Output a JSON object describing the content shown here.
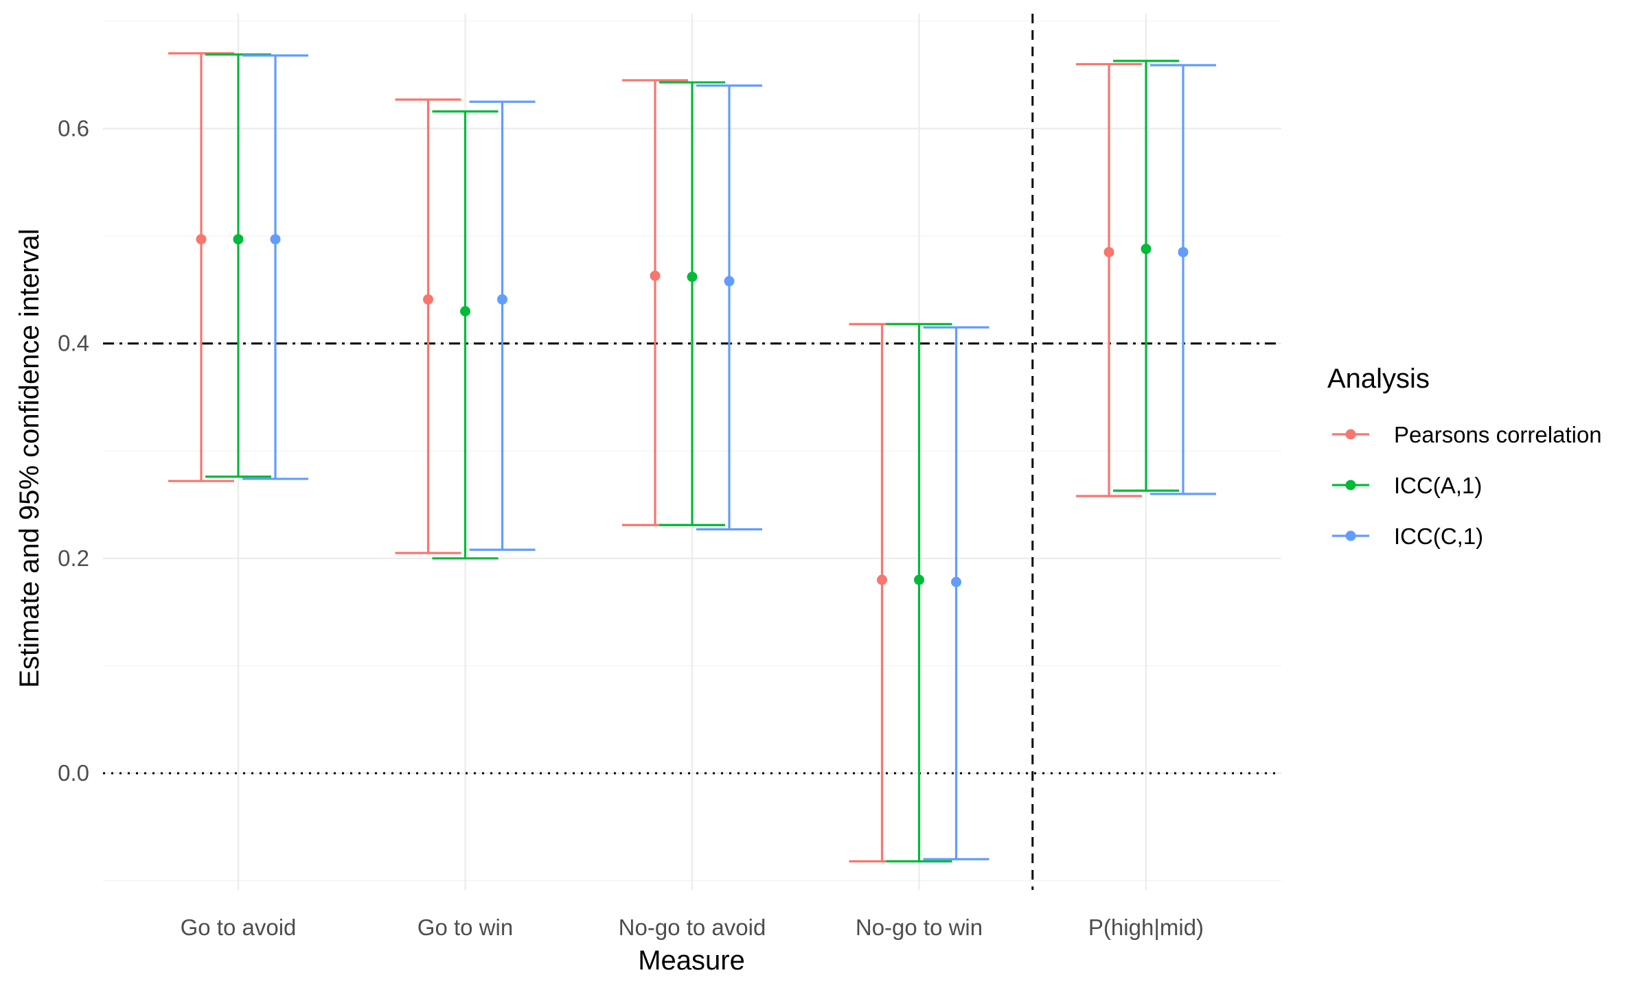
{
  "chart_data": {
    "type": "errorbar",
    "xlabel": "Measure",
    "ylabel": "Estimate and 95% confidence interval",
    "ylim": [
      -0.1,
      0.7
    ],
    "yticks": [
      0.0,
      0.2,
      0.4,
      0.6
    ],
    "ytick_labels": [
      "0.0",
      "0.2",
      "0.4",
      "0.6"
    ],
    "categories": [
      "Go to avoid",
      "Go to win",
      "No-go to avoid",
      "No-go to win",
      "P(high|mid)"
    ],
    "legend": {
      "title": "Analysis",
      "position": "right"
    },
    "grid": true,
    "reference_lines": [
      {
        "axis": "y",
        "value": 0.0,
        "style": "dotted"
      },
      {
        "axis": "y",
        "value": 0.4,
        "style": "dashdot"
      },
      {
        "axis": "x",
        "between": [
          "No-go to win",
          "P(high|mid)"
        ],
        "style": "dashed"
      }
    ],
    "series": [
      {
        "name": "Pearsons correlation",
        "color": "#F8766D",
        "estimate": [
          0.497,
          0.441,
          0.463,
          0.18,
          0.485
        ],
        "lower": [
          0.272,
          0.205,
          0.231,
          -0.082,
          0.258
        ],
        "upper": [
          0.67,
          0.627,
          0.645,
          0.418,
          0.66
        ]
      },
      {
        "name": "ICC(A,1)",
        "color": "#00BA38",
        "estimate": [
          0.497,
          0.43,
          0.462,
          0.18,
          0.488
        ],
        "lower": [
          0.276,
          0.2,
          0.231,
          -0.082,
          0.263
        ],
        "upper": [
          0.669,
          0.616,
          0.643,
          0.418,
          0.663
        ]
      },
      {
        "name": "ICC(C,1)",
        "color": "#619CFF",
        "estimate": [
          0.497,
          0.441,
          0.458,
          0.178,
          0.485
        ],
        "lower": [
          0.274,
          0.208,
          0.227,
          -0.08,
          0.26
        ],
        "upper": [
          0.668,
          0.625,
          0.64,
          0.415,
          0.659
        ]
      }
    ]
  }
}
